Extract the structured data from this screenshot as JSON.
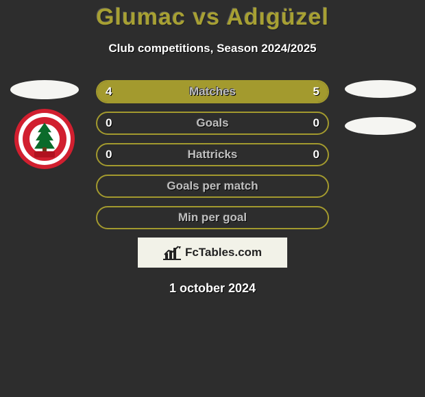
{
  "title": "Glumac vs Adıgüzel",
  "subtitle": "Club competitions, Season 2024/2025",
  "brand": "FcTables.com",
  "footer_date": "1 october 2024",
  "colors": {
    "accent": "#a39a2e",
    "bar_left": "#a39a2e",
    "bar_right": "#a39a2e",
    "border": "#a39a2e",
    "label": "#bfbfbf"
  },
  "club_badge": {
    "top_text": "ÜMRANİYE",
    "bottom_text": "SPOR KULÜBÜ",
    "year": "1938",
    "outer": "#d11f2f",
    "tree": "#0b6b2b"
  },
  "stats": [
    {
      "label": "Matches",
      "left_val": "4",
      "right_val": "5",
      "left_pct": 44,
      "right_pct": 56
    },
    {
      "label": "Goals",
      "left_val": "0",
      "right_val": "0",
      "left_pct": 0,
      "right_pct": 0
    },
    {
      "label": "Hattricks",
      "left_val": "0",
      "right_val": "0",
      "left_pct": 0,
      "right_pct": 0
    },
    {
      "label": "Goals per match",
      "left_val": "",
      "right_val": "",
      "left_pct": 0,
      "right_pct": 0
    },
    {
      "label": "Min per goal",
      "left_val": "",
      "right_val": "",
      "left_pct": 0,
      "right_pct": 0
    }
  ]
}
